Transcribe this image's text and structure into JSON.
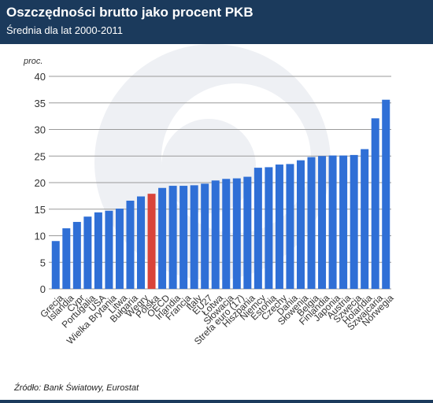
{
  "header": {
    "title": "Oszczędności brutto jako procent PKB",
    "subtitle": "Średnia dla lat 2000-2011"
  },
  "footer": {
    "source": "Źródło: Bank Światowy, Eurostat"
  },
  "colors": {
    "header_bg": "#1b3a5c",
    "bar": "#2f6fd6",
    "highlight_bar": "#d9443a",
    "grid": "#9a9a9a",
    "watermark": "#eef0f4"
  },
  "chart_data": {
    "type": "bar",
    "ylabel": "proc.",
    "ylim": [
      0,
      40
    ],
    "yticks": [
      0,
      5,
      10,
      15,
      20,
      25,
      30,
      35,
      40
    ],
    "grid": true,
    "highlight": "Polska",
    "categories": [
      "Grecja",
      "Islandia",
      "Cypr",
      "Portugalia",
      "USA",
      "Wielka Brytania",
      "Litwa",
      "Bułgaria",
      "Węgry",
      "Polska",
      "OECD",
      "Irlandia",
      "Francja",
      "Italy",
      "EU27",
      "Łotwa",
      "Słowacja",
      "Strefa euro (17)",
      "Hiszpania",
      "Niemcy",
      "Estonia",
      "Czechy",
      "Dania",
      "Słowenia",
      "Belgia",
      "Finlandia",
      "Japonia",
      "Austria",
      "Szwecja",
      "Holandia",
      "Szwajcaria",
      "Norwegia"
    ],
    "values": [
      9.0,
      11.4,
      12.6,
      13.6,
      14.4,
      14.7,
      15.1,
      16.6,
      17.4,
      17.9,
      19.0,
      19.4,
      19.4,
      19.5,
      19.8,
      20.4,
      20.7,
      20.8,
      21.1,
      22.8,
      22.9,
      23.4,
      23.5,
      24.2,
      24.8,
      25.0,
      25.1,
      25.1,
      25.2,
      26.3,
      32.1,
      35.6
    ]
  }
}
